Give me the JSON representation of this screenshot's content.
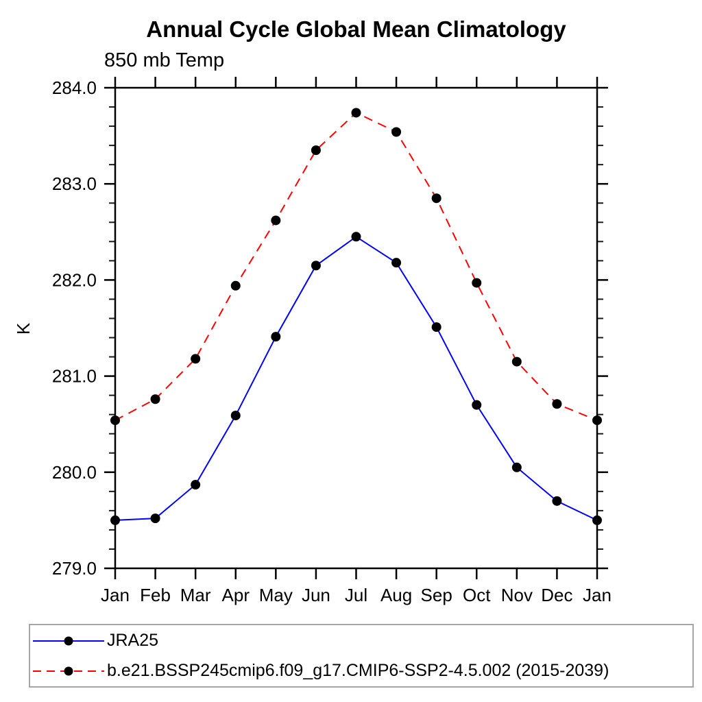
{
  "chart_data": {
    "type": "line",
    "title": "Annual Cycle Global Mean Climatology",
    "subtitle": "850 mb Temp",
    "ylabel": "K",
    "xlabel": "",
    "categories": [
      "Jan",
      "Feb",
      "Mar",
      "Apr",
      "May",
      "Jun",
      "Jul",
      "Aug",
      "Sep",
      "Oct",
      "Nov",
      "Dec",
      "Jan"
    ],
    "ylim": [
      279.0,
      284.0
    ],
    "ytick_major_interval": 1.0,
    "ytick_minor_interval": 0.2,
    "ytick_labels": [
      "279.0",
      "280.0",
      "281.0",
      "282.0",
      "283.0",
      "284.0"
    ],
    "grid": false,
    "legend_position": "bottom",
    "marker": "filled-circle",
    "marker_color": "#000000",
    "series": [
      {
        "name": "JRA25",
        "color": "#0000ff",
        "line_style": "solid",
        "marker_color": "#000000",
        "values": [
          279.5,
          279.52,
          279.87,
          280.59,
          281.41,
          282.15,
          282.45,
          282.18,
          281.51,
          280.7,
          280.05,
          279.7,
          279.5
        ]
      },
      {
        "name": "b.e21.BSSP245cmip6.f09_g17.CMIP6-SSP2-4.5.002 (2015-2039)",
        "color": "#ff0000",
        "line_style": "dashed",
        "marker_color": "#000000",
        "values": [
          280.54,
          280.76,
          281.18,
          281.94,
          282.62,
          283.35,
          283.74,
          283.54,
          282.85,
          281.97,
          281.15,
          280.71,
          280.54
        ]
      }
    ]
  }
}
